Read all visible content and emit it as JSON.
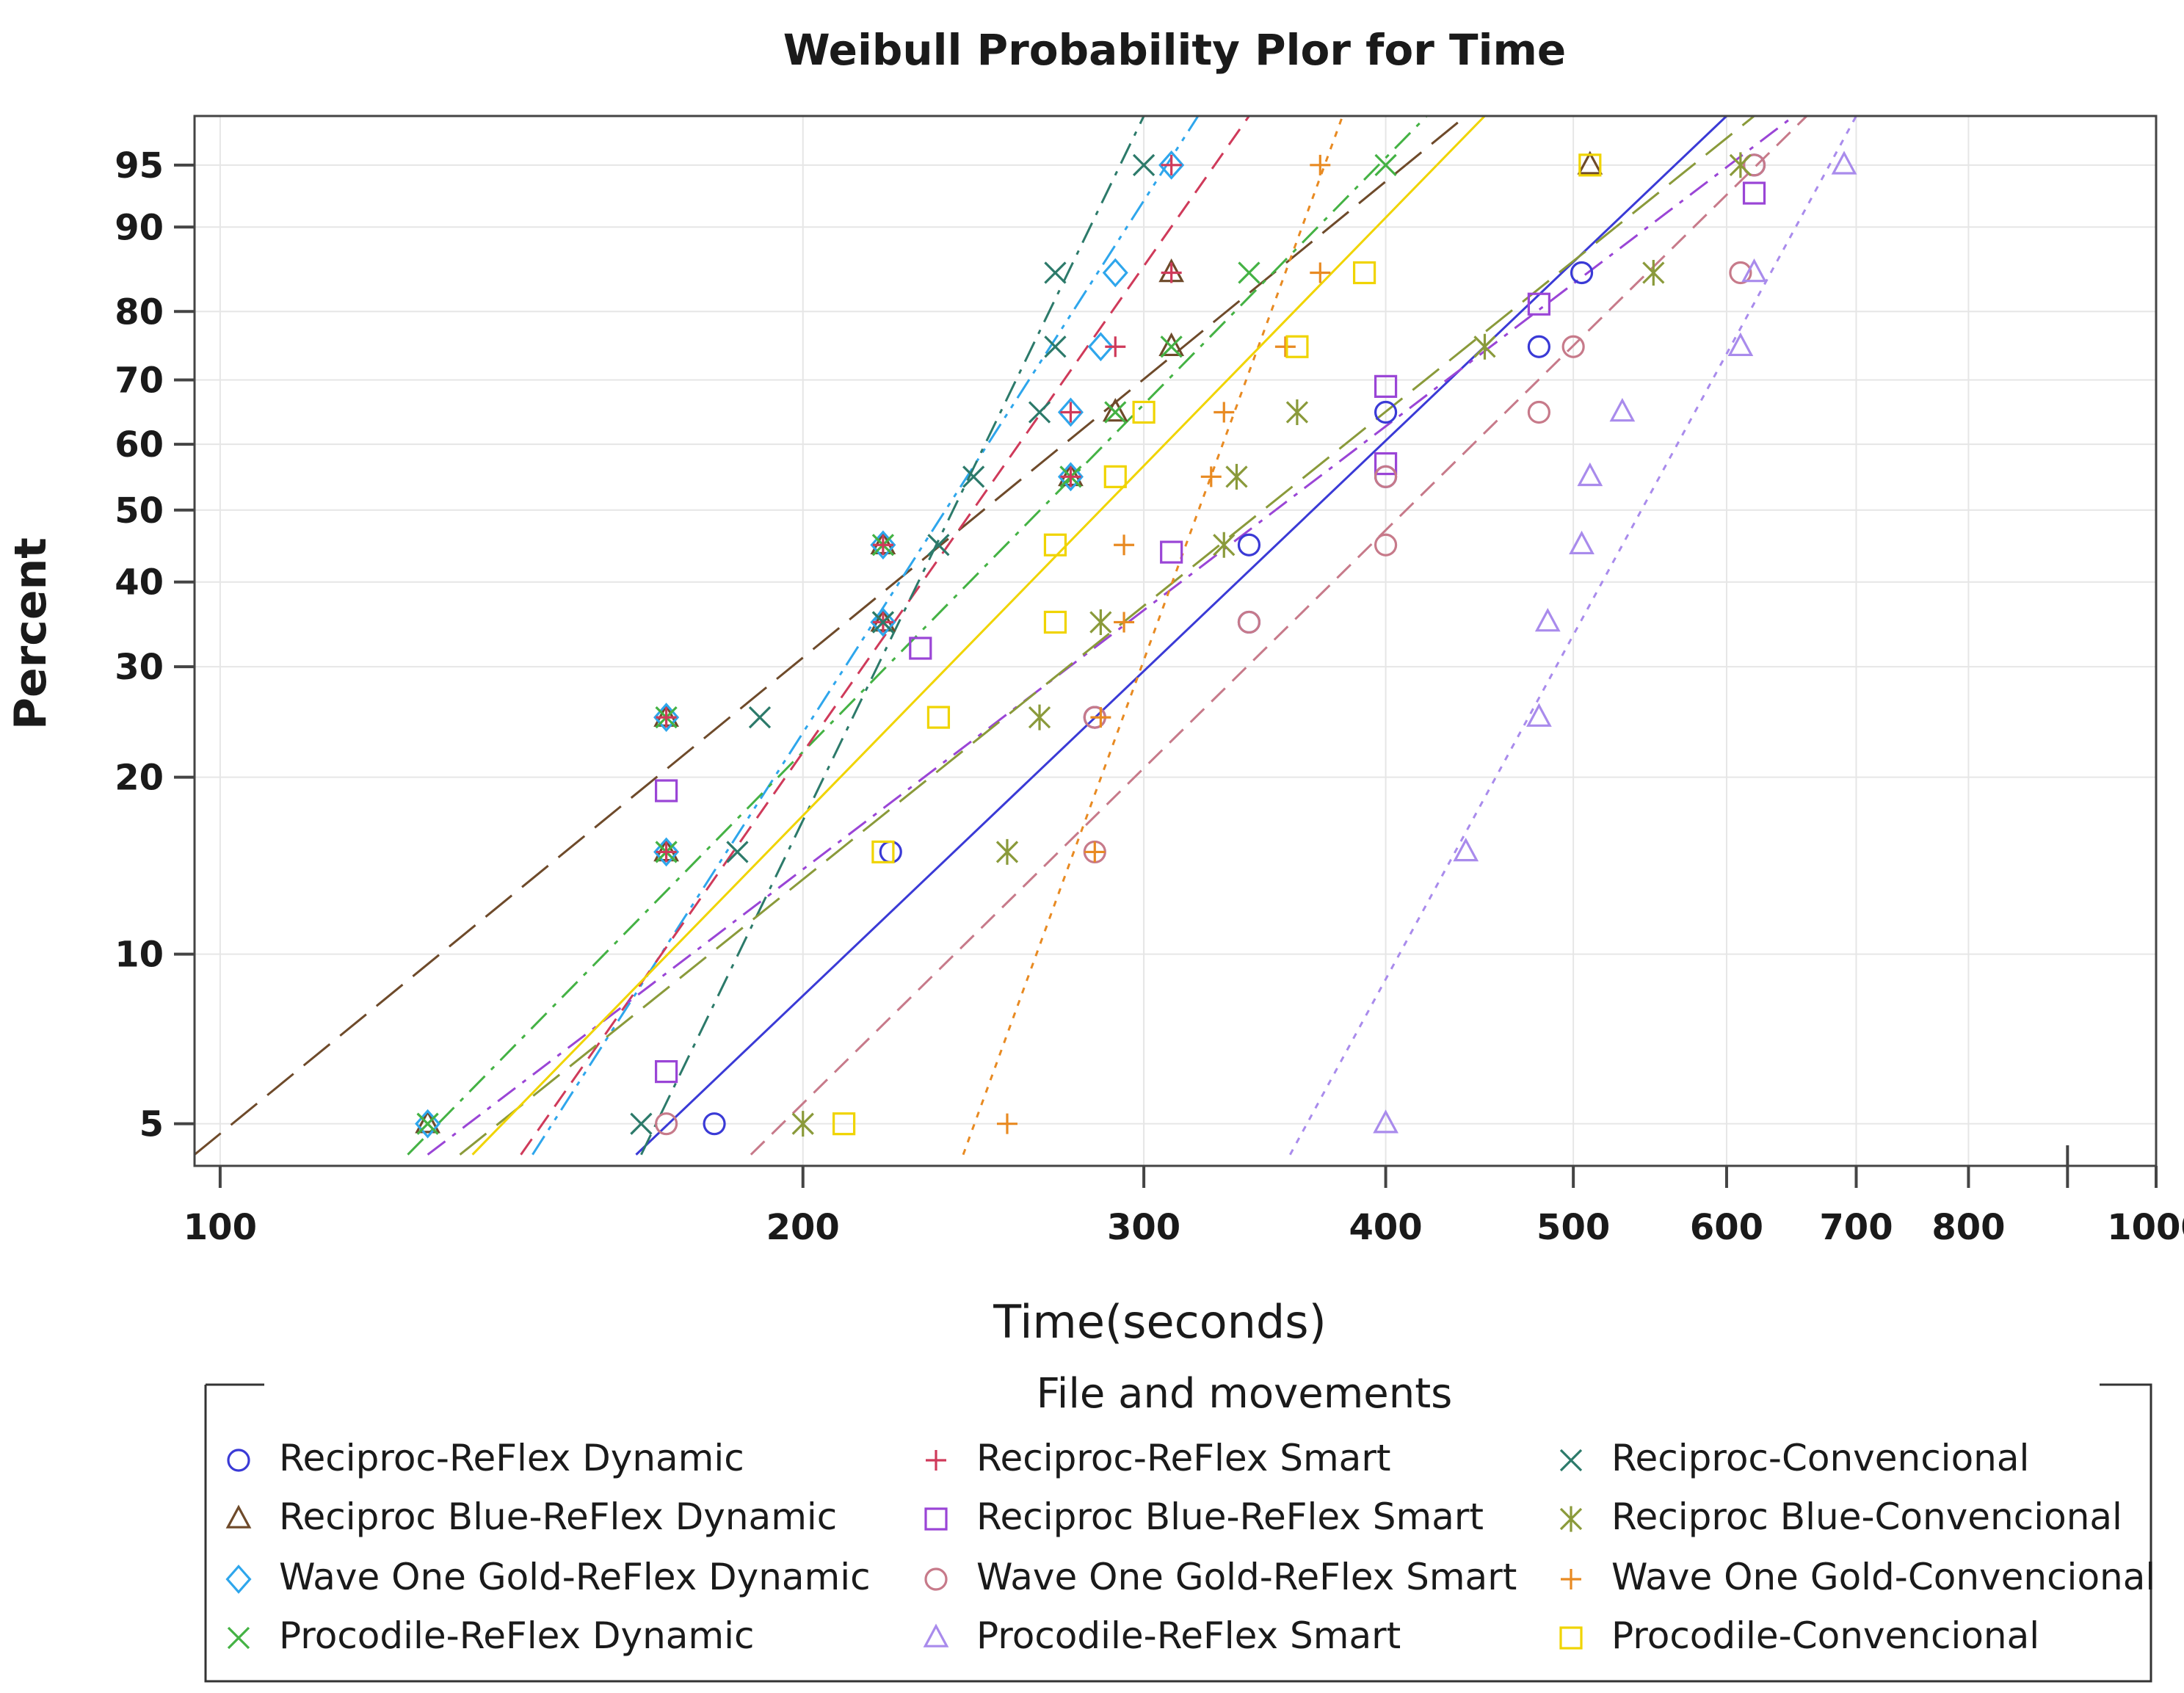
{
  "chart_data": {
    "type": "scatter",
    "subtype": "weibull-probability-plot",
    "title": "Weibull Probability Plor for Time",
    "xlabel": "Time(seconds)",
    "ylabel": "Percent",
    "xscale": "log",
    "yscale": "weibull",
    "xlim": [
      97,
      1000
    ],
    "ylim": [
      4.2,
      97.5
    ],
    "x_ticks": [
      100,
      200,
      300,
      400,
      500,
      600,
      700,
      800,
      1000
    ],
    "x_tick_labels": [
      "100",
      "200",
      "300",
      "400",
      "500",
      "600",
      "700",
      "800",
      "1000"
    ],
    "x_minor_ticks": [
      900
    ],
    "y_ticks": [
      5,
      10,
      20,
      30,
      40,
      50,
      60,
      70,
      80,
      90,
      95
    ],
    "y_tick_labels": [
      "5",
      "10",
      "20",
      "30",
      "40",
      "50",
      "60",
      "70",
      "80",
      "90",
      "95"
    ],
    "grid": true,
    "legend": {
      "title": "File and movements",
      "position": "bottom",
      "columns": 3
    },
    "series": [
      {
        "name": "Reciproc-ReFlex Dynamic",
        "color": "#3a3ad6",
        "marker": "circle",
        "dash": "solid",
        "line": {
          "x1": 164,
          "y1": 4.4,
          "x2": 600,
          "y2": 97.5
        },
        "points": [
          [
            180,
            5
          ],
          [
            222,
            15
          ],
          [
            283,
            25
          ],
          [
            340,
            35
          ],
          [
            340,
            45
          ],
          [
            400,
            55
          ],
          [
            400,
            65
          ],
          [
            480,
            75
          ],
          [
            505,
            85
          ],
          [
            620,
            95
          ]
        ]
      },
      {
        "name": "Reciproc Blue-ReFlex Dynamic",
        "color": "#6e4a2a",
        "marker": "triangle",
        "dash": "longdash",
        "line": {
          "x1": 97,
          "y1": 4.4,
          "x2": 440,
          "y2": 97.5
        },
        "points": [
          [
            128,
            5
          ],
          [
            170,
            15
          ],
          [
            170,
            25
          ],
          [
            220,
            35
          ],
          [
            220,
            45
          ],
          [
            275,
            55
          ],
          [
            290,
            65
          ],
          [
            310,
            75
          ],
          [
            310,
            85
          ],
          [
            510,
            95
          ]
        ]
      },
      {
        "name": "Wave One Gold-ReFlex Dynamic",
        "color": "#2ea6ec",
        "marker": "diamond",
        "dash": "dashdotdot",
        "line": {
          "x1": 145,
          "y1": 4.4,
          "x2": 320,
          "y2": 97.5
        },
        "points": [
          [
            128,
            5
          ],
          [
            170,
            15
          ],
          [
            170,
            25
          ],
          [
            220,
            35
          ],
          [
            220,
            45
          ],
          [
            275,
            55
          ],
          [
            275,
            65
          ],
          [
            285,
            75
          ],
          [
            290,
            85
          ],
          [
            310,
            95
          ]
        ]
      },
      {
        "name": "Procodile-ReFlex Dynamic",
        "color": "#44b244",
        "marker": "x",
        "dash": "dashdot",
        "line": {
          "x1": 125,
          "y1": 4.4,
          "x2": 420,
          "y2": 97.5
        },
        "points": [
          [
            128,
            5
          ],
          [
            170,
            15
          ],
          [
            170,
            25
          ],
          [
            220,
            35
          ],
          [
            220,
            45
          ],
          [
            275,
            55
          ],
          [
            290,
            65
          ],
          [
            310,
            75
          ],
          [
            340,
            85
          ],
          [
            400,
            95
          ]
        ]
      },
      {
        "name": "Reciproc-ReFlex Smart",
        "color": "#cf3a5a",
        "marker": "plus",
        "dash": "dash",
        "line": {
          "x1": 143,
          "y1": 4.4,
          "x2": 340,
          "y2": 97.5
        },
        "points": [
          [
            170,
            15
          ],
          [
            170,
            25
          ],
          [
            220,
            35
          ],
          [
            220,
            45
          ],
          [
            275,
            55
          ],
          [
            275,
            65
          ],
          [
            290,
            75
          ],
          [
            310,
            85
          ],
          [
            310,
            95
          ]
        ]
      },
      {
        "name": "Reciproc Blue-ReFlex Smart",
        "color": "#9a45d6",
        "marker": "square",
        "dash": "dashdot",
        "line": {
          "x1": 128,
          "y1": 4.4,
          "x2": 650,
          "y2": 97.5
        },
        "points": [
          [
            170,
            6.2
          ],
          [
            170,
            19
          ],
          [
            230,
            32
          ],
          [
            310,
            44
          ],
          [
            400,
            57
          ],
          [
            400,
            69
          ],
          [
            480,
            81
          ],
          [
            620,
            93
          ]
        ]
      },
      {
        "name": "Wave One Gold-ReFlex Smart",
        "color": "#c77a8a",
        "marker": "circle",
        "dash": "dash",
        "line": {
          "x1": 188,
          "y1": 4.4,
          "x2": 660,
          "y2": 97.5
        },
        "points": [
          [
            170,
            5
          ],
          [
            283,
            15
          ],
          [
            283,
            25
          ],
          [
            340,
            35
          ],
          [
            400,
            45
          ],
          [
            400,
            55
          ],
          [
            480,
            65
          ],
          [
            500,
            75
          ],
          [
            610,
            85
          ],
          [
            620,
            95
          ]
        ]
      },
      {
        "name": "Procodile-ReFlex Smart",
        "color": "#a98bec",
        "marker": "triangle",
        "dash": "dotted",
        "line": {
          "x1": 357,
          "y1": 4.4,
          "x2": 700,
          "y2": 97.5
        },
        "points": [
          [
            400,
            5
          ],
          [
            440,
            15
          ],
          [
            480,
            25
          ],
          [
            485,
            35
          ],
          [
            505,
            45
          ],
          [
            510,
            55
          ],
          [
            530,
            65
          ],
          [
            610,
            75
          ],
          [
            620,
            85
          ],
          [
            690,
            95
          ]
        ]
      },
      {
        "name": "Reciproc-Convencional",
        "color": "#2c7a6a",
        "marker": "x",
        "dash": "dashdot",
        "line": {
          "x1": 165,
          "y1": 4.4,
          "x2": 300,
          "y2": 97.5
        },
        "points": [
          [
            165,
            5
          ],
          [
            185,
            15
          ],
          [
            190,
            25
          ],
          [
            220,
            35
          ],
          [
            235,
            45
          ],
          [
            245,
            55
          ],
          [
            265,
            65
          ],
          [
            270,
            75
          ],
          [
            270,
            85
          ],
          [
            300,
            95
          ]
        ]
      },
      {
        "name": "Reciproc Blue-Convencional",
        "color": "#8a9a3a",
        "marker": "asterisk",
        "dash": "longdash",
        "line": {
          "x1": 133,
          "y1": 4.4,
          "x2": 620,
          "y2": 97.5
        },
        "points": [
          [
            200,
            5
          ],
          [
            255,
            15
          ],
          [
            265,
            25
          ],
          [
            285,
            35
          ],
          [
            330,
            45
          ],
          [
            335,
            55
          ],
          [
            360,
            65
          ],
          [
            450,
            75
          ],
          [
            550,
            85
          ],
          [
            610,
            95
          ]
        ]
      },
      {
        "name": "Wave One Gold-Convencional",
        "color": "#e88a22",
        "marker": "plus",
        "dash": "dotted",
        "line": {
          "x1": 242,
          "y1": 4.4,
          "x2": 380,
          "y2": 97.5
        },
        "points": [
          [
            255,
            5
          ],
          [
            283,
            15
          ],
          [
            285,
            25
          ],
          [
            293,
            35
          ],
          [
            293,
            45
          ],
          [
            325,
            55
          ],
          [
            330,
            65
          ],
          [
            355,
            75
          ],
          [
            370,
            85
          ],
          [
            370,
            95
          ]
        ]
      },
      {
        "name": "Procodile-Convencional",
        "color": "#f0d400",
        "marker": "square",
        "dash": "solid",
        "line": {
          "x1": 135,
          "y1": 4.4,
          "x2": 450,
          "y2": 97.5
        },
        "points": [
          [
            210,
            5
          ],
          [
            220,
            15
          ],
          [
            235,
            25
          ],
          [
            270,
            35
          ],
          [
            270,
            45
          ],
          [
            290,
            55
          ],
          [
            300,
            65
          ],
          [
            360,
            75
          ],
          [
            390,
            85
          ],
          [
            510,
            95
          ]
        ]
      }
    ]
  }
}
